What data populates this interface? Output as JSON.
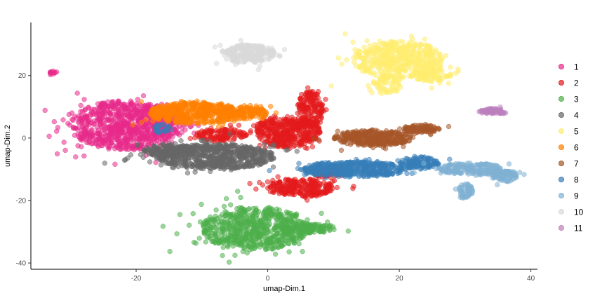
{
  "chart_data": {
    "type": "scatter",
    "title": "",
    "xlabel": "umap-Dim.1",
    "ylabel": "umap-Dim.2",
    "xlim": [
      -36,
      41
    ],
    "ylim": [
      -42,
      37
    ],
    "xticks": [
      -20,
      0,
      20,
      40
    ],
    "yticks": [
      -40,
      -20,
      0,
      20
    ],
    "xtick_labels": [
      "-20",
      "0",
      "20",
      "40"
    ],
    "ytick_labels": [
      "-40",
      "-20",
      "0",
      "20"
    ],
    "grid": false,
    "legend_position": "right",
    "series": [
      {
        "name": "1",
        "color": "#E7298A",
        "clusters": [
          {
            "cx": -22,
            "cy": 4,
            "rx": 8,
            "ry": 8,
            "n": 700
          },
          {
            "cx": -17,
            "cy": 5,
            "rx": 5,
            "ry": 6,
            "n": 200
          },
          {
            "cx": -32.5,
            "cy": 21,
            "rx": 0.6,
            "ry": 0.6,
            "n": 12
          }
        ]
      },
      {
        "name": "2",
        "color": "#E41A1C",
        "clusters": [
          {
            "cx": 3,
            "cy": 2,
            "rx": 5,
            "ry": 5,
            "n": 400
          },
          {
            "cx": 6.5,
            "cy": 9,
            "rx": 2,
            "ry": 6,
            "n": 180
          },
          {
            "cx": -7,
            "cy": 1,
            "rx": 4,
            "ry": 2,
            "n": 120
          },
          {
            "cx": 5,
            "cy": -16,
            "rx": 5,
            "ry": 3,
            "n": 250
          },
          {
            "cx": 9,
            "cy": -11,
            "rx": 2,
            "ry": 2,
            "n": 60
          }
        ]
      },
      {
        "name": "3",
        "color": "#4DAF4A",
        "clusters": [
          {
            "cx": -2,
            "cy": -29,
            "rx": 8,
            "ry": 7,
            "n": 650
          },
          {
            "cx": 6,
            "cy": -29,
            "rx": 4,
            "ry": 1.5,
            "n": 120
          }
        ]
      },
      {
        "name": "4",
        "color": "#666666",
        "clusters": [
          {
            "cx": -8,
            "cy": -6,
            "rx": 9,
            "ry": 4,
            "n": 650
          },
          {
            "cx": -15,
            "cy": -4,
            "rx": 4,
            "ry": 2,
            "n": 150
          }
        ]
      },
      {
        "name": "5",
        "color": "#FFED6F",
        "clusters": [
          {
            "cx": 20,
            "cy": 25,
            "rx": 7,
            "ry": 6,
            "n": 500
          },
          {
            "cx": 25,
            "cy": 20,
            "rx": 3,
            "ry": 2,
            "n": 80
          },
          {
            "cx": 18,
            "cy": 17,
            "rx": 2,
            "ry": 3,
            "n": 60
          }
        ]
      },
      {
        "name": "6",
        "color": "#FF7F00",
        "clusters": [
          {
            "cx": -11,
            "cy": 8,
            "rx": 7,
            "ry": 3.5,
            "n": 450
          },
          {
            "cx": -3,
            "cy": 8,
            "rx": 3,
            "ry": 2,
            "n": 120
          }
        ]
      },
      {
        "name": "7",
        "color": "#A65628",
        "clusters": [
          {
            "cx": 16,
            "cy": 0,
            "rx": 6,
            "ry": 2.5,
            "n": 350
          },
          {
            "cx": 23,
            "cy": 3,
            "rx": 3,
            "ry": 1.2,
            "n": 90
          }
        ]
      },
      {
        "name": "8",
        "color": "#377EB8",
        "clusters": [
          {
            "cx": 13,
            "cy": -10,
            "rx": 8,
            "ry": 2.5,
            "n": 450
          },
          {
            "cx": 23,
            "cy": -8,
            "rx": 3,
            "ry": 2,
            "n": 120
          },
          {
            "cx": -16,
            "cy": 3,
            "rx": 1.5,
            "ry": 1.5,
            "n": 25
          }
        ]
      },
      {
        "name": "9",
        "color": "#80B1D3",
        "clusters": [
          {
            "cx": 31,
            "cy": -10,
            "rx": 5,
            "ry": 2,
            "n": 200
          },
          {
            "cx": 36,
            "cy": -12,
            "rx": 2,
            "ry": 2,
            "n": 90
          },
          {
            "cx": 30,
            "cy": -17,
            "rx": 1.2,
            "ry": 2.5,
            "n": 60
          }
        ]
      },
      {
        "name": "10",
        "color": "#D9D9D9",
        "clusters": [
          {
            "cx": -3,
            "cy": 27,
            "rx": 4,
            "ry": 3,
            "n": 260
          }
        ]
      },
      {
        "name": "11",
        "color": "#BC80BD",
        "clusters": [
          {
            "cx": 34,
            "cy": 8.5,
            "rx": 2,
            "ry": 1,
            "n": 70
          }
        ]
      }
    ]
  }
}
